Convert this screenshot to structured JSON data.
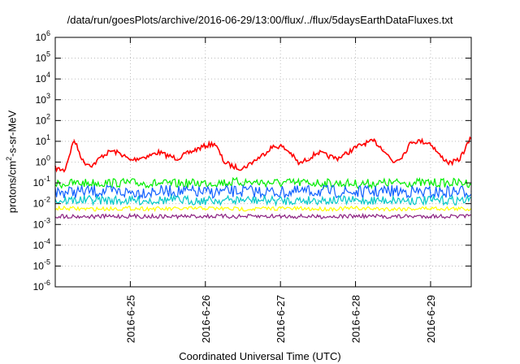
{
  "chart_data": {
    "type": "line",
    "title": "/data/run/goesPlots/archive/2016-06-29/13:00/flux/../flux/5daysEarthDataFluxes.txt",
    "xlabel": "Coordinated Universal Time (UTC)",
    "ylabel": "protons/cm2-s-sr-MeV",
    "ylabel_parts": {
      "pre": "protons/cm",
      "sup": "2",
      "post": "-s-sr-MeV"
    },
    "yscale": "log",
    "ylim": [
      1e-06,
      1000000.0
    ],
    "y_ticks": [
      {
        "value": 1e-06,
        "base": "10",
        "exp": "-6"
      },
      {
        "value": 1e-05,
        "base": "10",
        "exp": "-5"
      },
      {
        "value": 0.0001,
        "base": "10",
        "exp": "-4"
      },
      {
        "value": 0.001,
        "base": "10",
        "exp": "-3"
      },
      {
        "value": 0.01,
        "base": "10",
        "exp": "-2"
      },
      {
        "value": 0.1,
        "base": "10",
        "exp": "-1"
      },
      {
        "value": 1,
        "base": "10",
        "exp": "0"
      },
      {
        "value": 10.0,
        "base": "10",
        "exp": "1"
      },
      {
        "value": 100.0,
        "base": "10",
        "exp": "2"
      },
      {
        "value": 1000.0,
        "base": "10",
        "exp": "3"
      },
      {
        "value": 10000.0,
        "base": "10",
        "exp": "4"
      },
      {
        "value": 100000.0,
        "base": "10",
        "exp": "5"
      },
      {
        "value": 1000000.0,
        "base": "10",
        "exp": "6"
      }
    ],
    "xlim": [
      "2016-06-24T00:00",
      "2016-06-29T13:00"
    ],
    "x_ticks": [
      "2016-6-25",
      "2016-6-26",
      "2016-6-27",
      "2016-6-28",
      "2016-6-29"
    ],
    "x_tick_values": [
      "2016-06-25T00:00",
      "2016-06-26T00:00",
      "2016-06-27T00:00",
      "2016-06-28T00:00",
      "2016-06-29T00:00"
    ],
    "grid": true,
    "legend": "none",
    "series": [
      {
        "color": "#ff0000",
        "x": [
          "2016-06-24T00:00",
          "2016-06-24T03:00",
          "2016-06-24T06:00",
          "2016-06-24T09:00",
          "2016-06-24T12:00",
          "2016-06-24T15:00",
          "2016-06-24T18:00",
          "2016-06-24T21:00",
          "2016-06-25T00:00",
          "2016-06-25T03:00",
          "2016-06-25T06:00",
          "2016-06-25T09:00",
          "2016-06-25T12:00",
          "2016-06-25T15:00",
          "2016-06-25T18:00",
          "2016-06-25T21:00",
          "2016-06-26T00:00",
          "2016-06-26T03:00",
          "2016-06-26T06:00",
          "2016-06-26T09:00",
          "2016-06-26T12:00",
          "2016-06-26T15:00",
          "2016-06-26T18:00",
          "2016-06-26T21:00",
          "2016-06-27T00:00",
          "2016-06-27T03:00",
          "2016-06-27T06:00",
          "2016-06-27T09:00",
          "2016-06-27T12:00",
          "2016-06-27T15:00",
          "2016-06-27T18:00",
          "2016-06-27T21:00",
          "2016-06-28T00:00",
          "2016-06-28T03:00",
          "2016-06-28T06:00",
          "2016-06-28T09:00",
          "2016-06-28T12:00",
          "2016-06-28T15:00",
          "2016-06-28T18:00",
          "2016-06-28T21:00",
          "2016-06-29T00:00",
          "2016-06-29T03:00",
          "2016-06-29T06:00",
          "2016-06-29T09:00",
          "2016-06-29T13:00"
        ],
        "values": [
          0.5,
          0.4,
          12,
          1.0,
          0.7,
          2.0,
          3.5,
          2.5,
          1.2,
          1.6,
          2.0,
          3.0,
          2.0,
          1.5,
          2.5,
          4.0,
          6.0,
          8.0,
          1.0,
          0.6,
          0.5,
          1.0,
          2.0,
          5.0,
          6.0,
          3.0,
          0.8,
          1.5,
          3.0,
          2.0,
          1.5,
          2.5,
          5.0,
          8.0,
          10.0,
          4.0,
          1.0,
          2.0,
          10.0,
          10.0,
          8.0,
          2.0,
          0.9,
          1.2,
          15.0
        ]
      },
      {
        "color": "#00ee00",
        "x": [
          "2016-06-24T00:00",
          "2016-06-24T12:00",
          "2016-06-25T00:00",
          "2016-06-25T12:00",
          "2016-06-26T00:00",
          "2016-06-26T12:00",
          "2016-06-27T00:00",
          "2016-06-27T12:00",
          "2016-06-28T00:00",
          "2016-06-28T12:00",
          "2016-06-29T00:00",
          "2016-06-29T13:00"
        ],
        "values": [
          0.09,
          0.1,
          0.1,
          0.09,
          0.1,
          0.11,
          0.1,
          0.1,
          0.09,
          0.1,
          0.1,
          0.1
        ]
      },
      {
        "color": "#1060ff",
        "x": [
          "2016-06-24T00:00",
          "2016-06-24T12:00",
          "2016-06-25T00:00",
          "2016-06-25T12:00",
          "2016-06-26T00:00",
          "2016-06-26T12:00",
          "2016-06-27T00:00",
          "2016-06-27T12:00",
          "2016-06-28T00:00",
          "2016-06-28T12:00",
          "2016-06-29T00:00",
          "2016-06-29T13:00"
        ],
        "values": [
          0.035,
          0.04,
          0.035,
          0.04,
          0.035,
          0.04,
          0.035,
          0.04,
          0.035,
          0.04,
          0.035,
          0.04
        ]
      },
      {
        "color": "#00c8c8",
        "x": [
          "2016-06-24T00:00",
          "2016-06-24T12:00",
          "2016-06-25T00:00",
          "2016-06-25T12:00",
          "2016-06-26T00:00",
          "2016-06-26T12:00",
          "2016-06-27T00:00",
          "2016-06-27T12:00",
          "2016-06-28T00:00",
          "2016-06-28T12:00",
          "2016-06-29T00:00",
          "2016-06-29T13:00"
        ],
        "values": [
          0.014,
          0.015,
          0.014,
          0.015,
          0.014,
          0.015,
          0.014,
          0.015,
          0.014,
          0.015,
          0.014,
          0.015
        ]
      },
      {
        "color": "#ffff00",
        "x": [
          "2016-06-24T00:00",
          "2016-06-24T12:00",
          "2016-06-25T00:00",
          "2016-06-25T12:00",
          "2016-06-26T00:00",
          "2016-06-26T12:00",
          "2016-06-27T00:00",
          "2016-06-27T12:00",
          "2016-06-28T00:00",
          "2016-06-28T12:00",
          "2016-06-29T00:00",
          "2016-06-29T13:00"
        ],
        "values": [
          0.006,
          0.0055,
          0.006,
          0.0055,
          0.006,
          0.0055,
          0.006,
          0.0055,
          0.006,
          0.0055,
          0.006,
          0.0055
        ]
      },
      {
        "color": "#8b2080",
        "x": [
          "2016-06-24T00:00",
          "2016-06-24T12:00",
          "2016-06-25T00:00",
          "2016-06-25T12:00",
          "2016-06-26T00:00",
          "2016-06-26T12:00",
          "2016-06-27T00:00",
          "2016-06-27T12:00",
          "2016-06-28T00:00",
          "2016-06-28T12:00",
          "2016-06-29T00:00",
          "2016-06-29T13:00"
        ],
        "values": [
          0.0025,
          0.0024,
          0.0025,
          0.0024,
          0.0025,
          0.0024,
          0.0025,
          0.0024,
          0.0025,
          0.0024,
          0.0025,
          0.0024
        ]
      }
    ]
  }
}
